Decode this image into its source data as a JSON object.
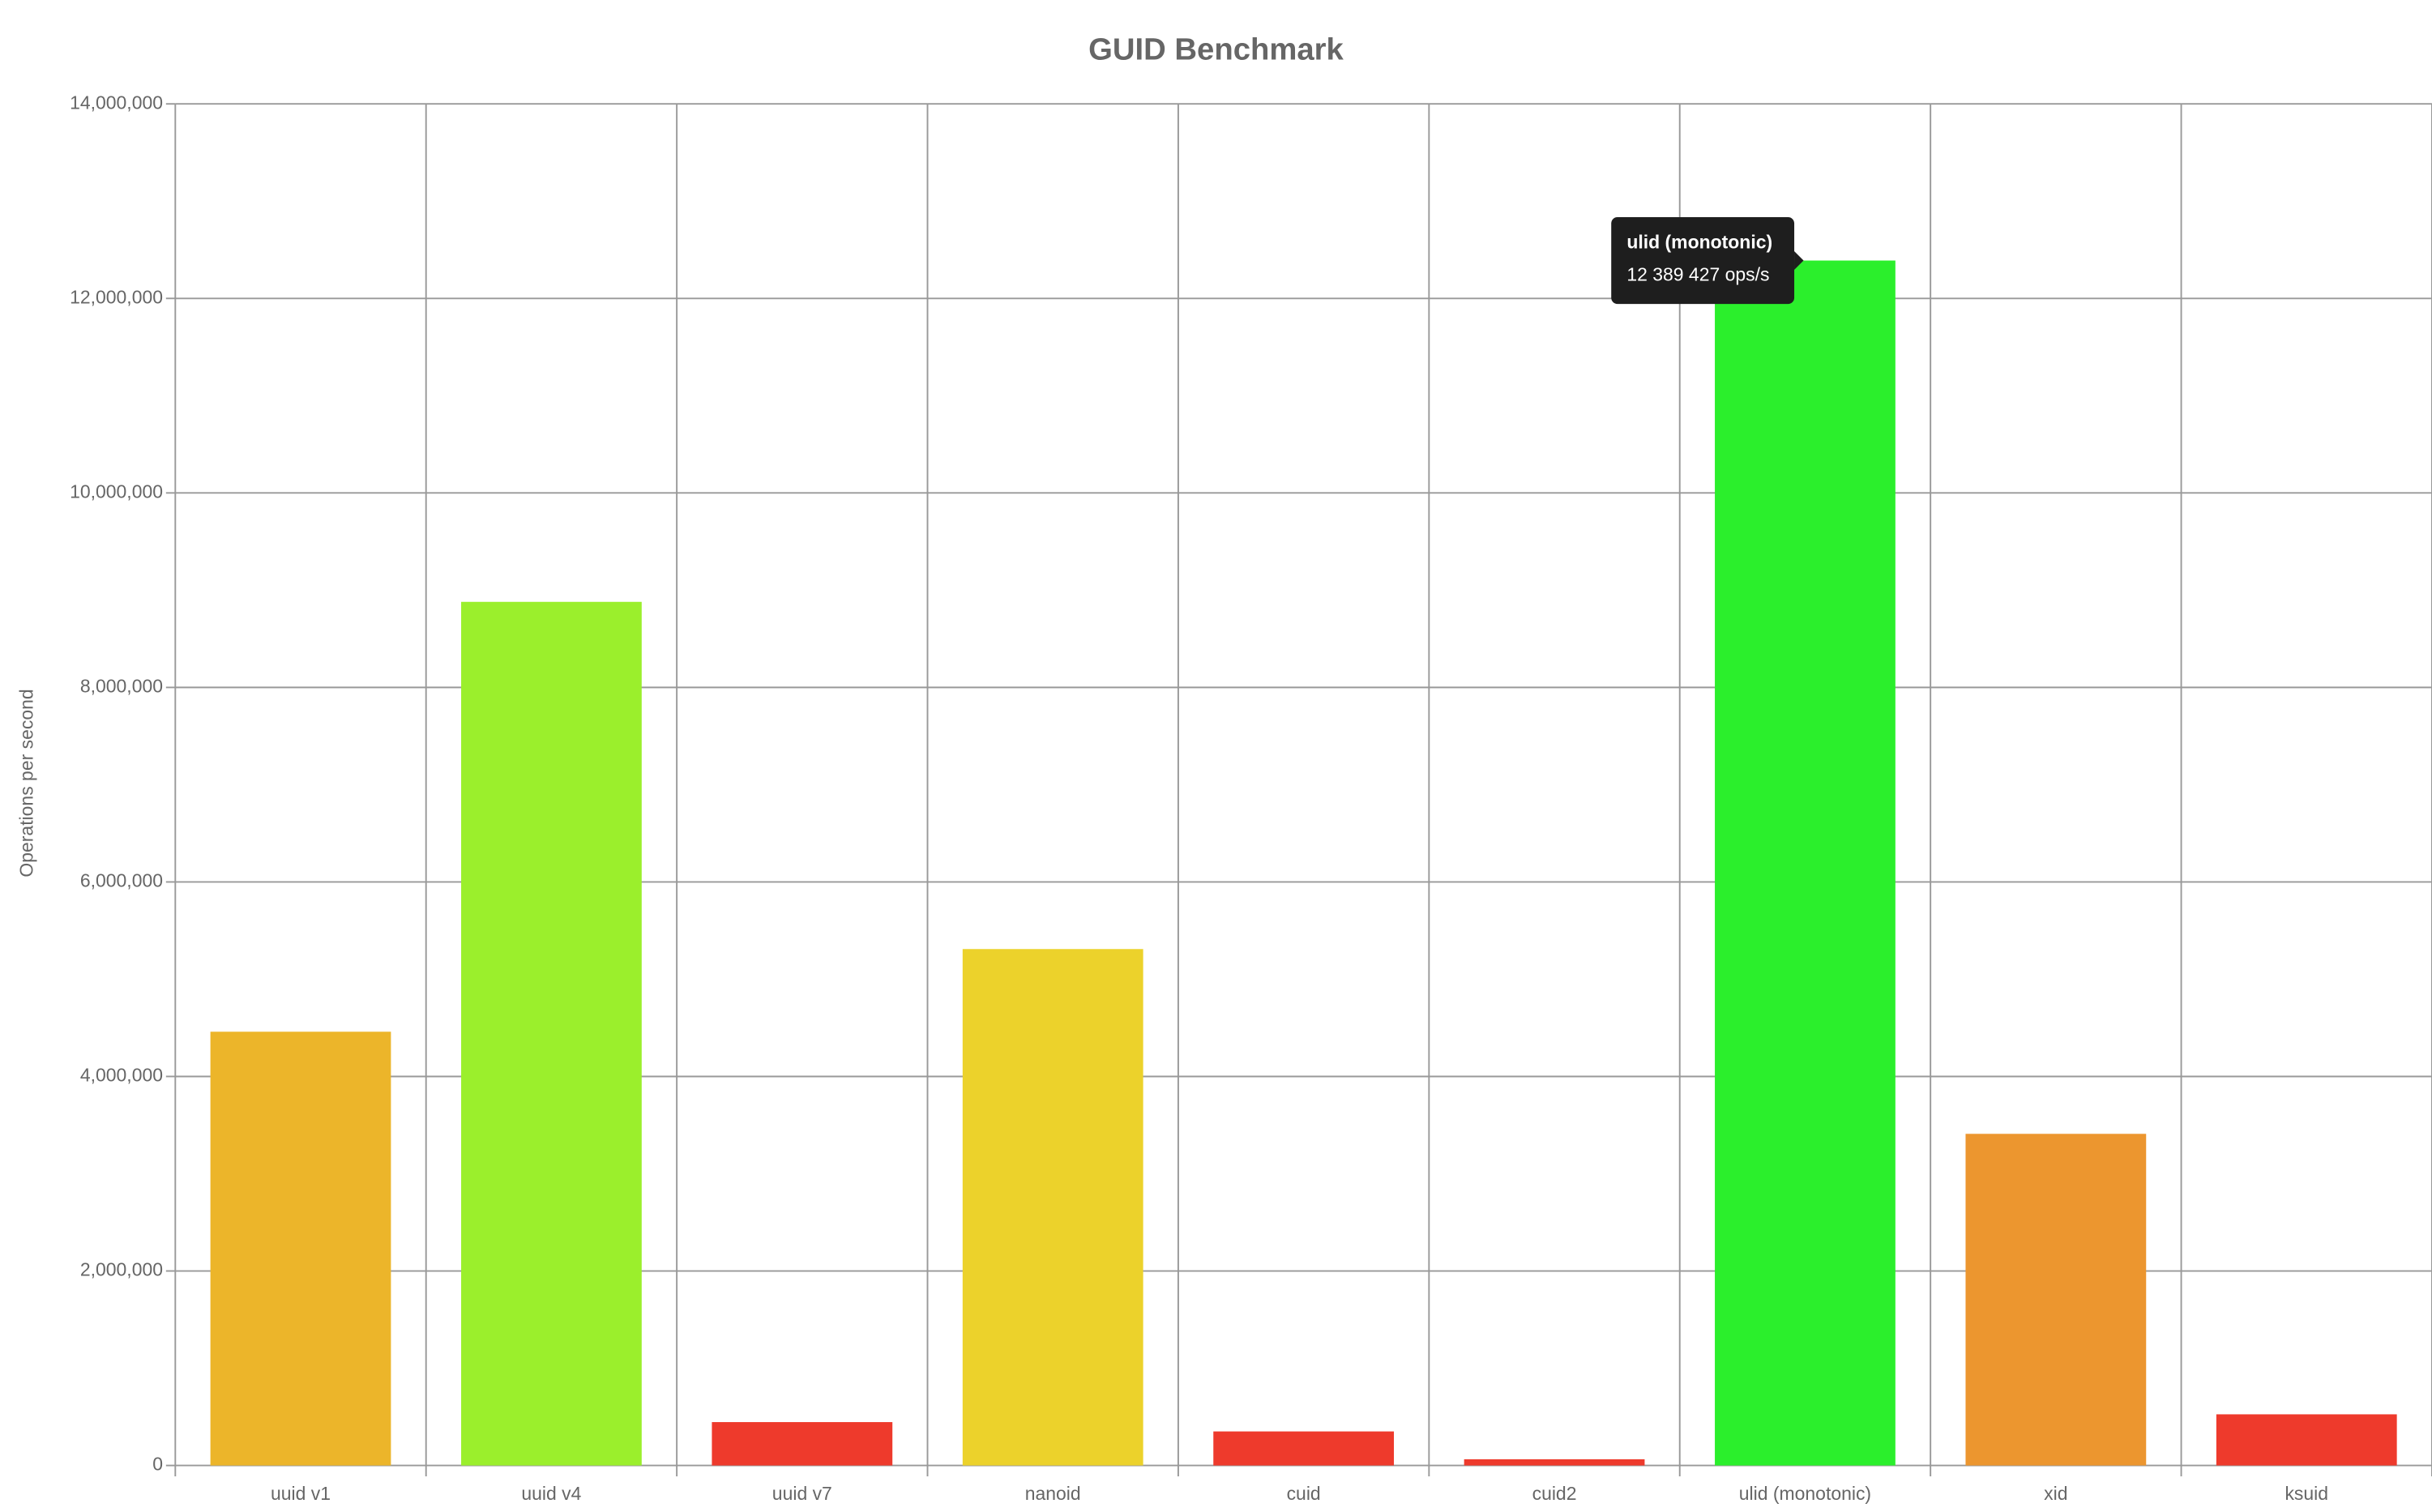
{
  "chart_data": {
    "type": "bar",
    "title": "GUID Benchmark",
    "y_label": "Operations per second",
    "categories": [
      "uuid v1",
      "uuid v4",
      "uuid v7",
      "nanoid",
      "cuid",
      "cuid2",
      "ulid (monotonic)",
      "xid",
      "ksuid"
    ],
    "values": [
      4460000,
      8880000,
      446000,
      5310000,
      350000,
      64000,
      12389427,
      3410000,
      526000
    ],
    "value_labels": [
      null,
      null,
      null,
      null,
      null,
      null,
      "12 389 427 ops/s",
      null,
      null
    ],
    "colors": [
      "#ecb52a",
      "#9bef2c",
      "#ee3a2c",
      "#ecd22b",
      "#ee3a2c",
      "#ee3a2c",
      "#2bef2c",
      "#ec962f",
      "#ee3a2c"
    ],
    "ylim": [
      0,
      14000000
    ],
    "yticks": [
      0,
      {
        "value": 2000000,
        "label": "2,000,000"
      },
      {
        "value": 4000000,
        "label": "4,000,000"
      },
      {
        "value": 6000000,
        "label": "6,000,000"
      },
      {
        "value": 8000000,
        "label": "8,000,000"
      },
      {
        "value": 10000000,
        "label": "10,000,000"
      },
      {
        "value": 12000000,
        "label": "12,000,000"
      },
      {
        "value": 14000000,
        "label": "14,000,000"
      }
    ],
    "grid": true
  }
}
